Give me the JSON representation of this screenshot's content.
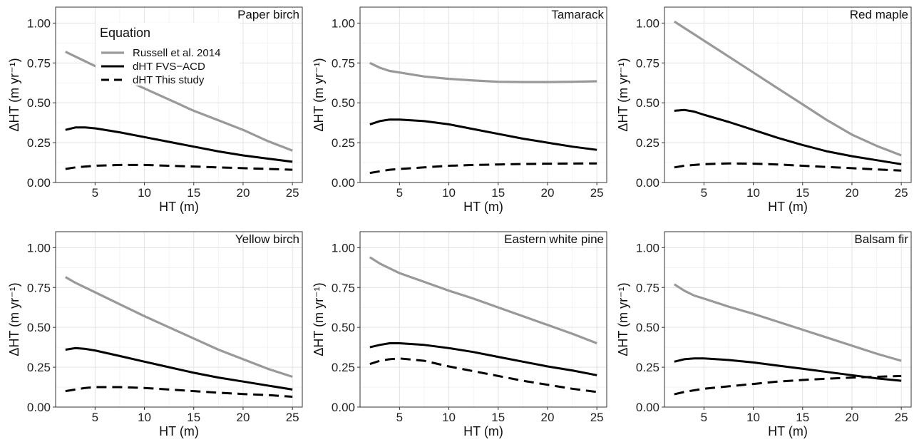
{
  "legend": {
    "title": "Equation",
    "position": "inside top-left of first panel"
  },
  "chart_data": [
    {
      "type": "line",
      "title": "Paper birch",
      "xlabel": "HT (m)",
      "ylabel": "ΔHT (m yr⁻¹)",
      "xlim": [
        1,
        26
      ],
      "ylim": [
        0,
        1.1
      ],
      "xticks": [
        5,
        10,
        15,
        20,
        25
      ],
      "yticks": [
        "0.00",
        "0.25",
        "0.50",
        "0.75",
        "1.00"
      ],
      "grid": true,
      "x": [
        2,
        3,
        4,
        5,
        7.5,
        10,
        12.5,
        15,
        17.5,
        20,
        22.5,
        25
      ],
      "series": [
        {
          "name": "Russell et al. 2014",
          "color": "#999999",
          "dash": "solid",
          "values": [
            0.82,
            0.79,
            0.76,
            0.73,
            0.66,
            0.59,
            0.52,
            0.45,
            0.39,
            0.33,
            0.26,
            0.2
          ]
        },
        {
          "name": "dHT FVS−ACD",
          "color": "#000000",
          "dash": "solid",
          "values": [
            0.33,
            0.345,
            0.345,
            0.34,
            0.315,
            0.285,
            0.255,
            0.225,
            0.195,
            0.17,
            0.15,
            0.13
          ]
        },
        {
          "name": "dHT This study",
          "color": "#000000",
          "dash": "dashed",
          "values": [
            0.085,
            0.095,
            0.1,
            0.105,
            0.11,
            0.11,
            0.105,
            0.1,
            0.095,
            0.09,
            0.085,
            0.08
          ]
        }
      ]
    },
    {
      "type": "line",
      "title": "Tamarack",
      "xlabel": "HT (m)",
      "ylabel": "ΔHT (m yr⁻¹)",
      "xlim": [
        1,
        26
      ],
      "ylim": [
        0,
        1.1
      ],
      "xticks": [
        5,
        10,
        15,
        20,
        25
      ],
      "yticks": [
        "0.00",
        "0.25",
        "0.50",
        "0.75",
        "1.00"
      ],
      "grid": true,
      "x": [
        2,
        3,
        4,
        5,
        7.5,
        10,
        12.5,
        15,
        17.5,
        20,
        22.5,
        25
      ],
      "series": [
        {
          "name": "Russell et al. 2014",
          "color": "#999999",
          "dash": "solid",
          "values": [
            0.75,
            0.72,
            0.7,
            0.69,
            0.665,
            0.65,
            0.64,
            0.632,
            0.63,
            0.63,
            0.632,
            0.635
          ]
        },
        {
          "name": "dHT FVS−ACD",
          "color": "#000000",
          "dash": "solid",
          "values": [
            0.365,
            0.385,
            0.395,
            0.395,
            0.385,
            0.365,
            0.335,
            0.305,
            0.275,
            0.25,
            0.225,
            0.205
          ]
        },
        {
          "name": "dHT This study",
          "color": "#000000",
          "dash": "dashed",
          "values": [
            0.06,
            0.07,
            0.08,
            0.085,
            0.095,
            0.105,
            0.11,
            0.113,
            0.116,
            0.118,
            0.119,
            0.12
          ]
        }
      ]
    },
    {
      "type": "line",
      "title": "Red maple",
      "xlabel": "HT (m)",
      "ylabel": "ΔHT (m yr⁻¹)",
      "xlim": [
        1,
        26
      ],
      "ylim": [
        0,
        1.1
      ],
      "xticks": [
        5,
        10,
        15,
        20,
        25
      ],
      "yticks": [
        "0.00",
        "0.25",
        "0.50",
        "0.75",
        "1.00"
      ],
      "grid": true,
      "x": [
        2,
        3,
        4,
        5,
        7.5,
        10,
        12.5,
        15,
        17.5,
        20,
        22.5,
        25
      ],
      "series": [
        {
          "name": "Russell et al. 2014",
          "color": "#999999",
          "dash": "solid",
          "values": [
            1.01,
            0.97,
            0.93,
            0.89,
            0.79,
            0.69,
            0.59,
            0.49,
            0.39,
            0.3,
            0.23,
            0.17
          ]
        },
        {
          "name": "dHT FVS−ACD",
          "color": "#000000",
          "dash": "solid",
          "values": [
            0.45,
            0.455,
            0.445,
            0.425,
            0.38,
            0.33,
            0.28,
            0.235,
            0.195,
            0.165,
            0.14,
            0.115
          ]
        },
        {
          "name": "dHT This study",
          "color": "#000000",
          "dash": "dashed",
          "values": [
            0.095,
            0.105,
            0.11,
            0.115,
            0.12,
            0.118,
            0.113,
            0.105,
            0.097,
            0.09,
            0.082,
            0.075
          ]
        }
      ]
    },
    {
      "type": "line",
      "title": "Yellow birch",
      "xlabel": "HT (m)",
      "ylabel": "ΔHT (m yr⁻¹)",
      "xlim": [
        1,
        26
      ],
      "ylim": [
        0,
        1.1
      ],
      "xticks": [
        5,
        10,
        15,
        20,
        25
      ],
      "yticks": [
        "0.00",
        "0.25",
        "0.50",
        "0.75",
        "1.00"
      ],
      "grid": true,
      "x": [
        2,
        3,
        4,
        5,
        7.5,
        10,
        12.5,
        15,
        17.5,
        20,
        22.5,
        25
      ],
      "series": [
        {
          "name": "Russell et al. 2014",
          "color": "#999999",
          "dash": "solid",
          "values": [
            0.815,
            0.78,
            0.75,
            0.72,
            0.645,
            0.57,
            0.5,
            0.43,
            0.36,
            0.3,
            0.24,
            0.19
          ]
        },
        {
          "name": "dHT FVS−ACD",
          "color": "#000000",
          "dash": "solid",
          "values": [
            0.36,
            0.37,
            0.365,
            0.355,
            0.32,
            0.285,
            0.25,
            0.215,
            0.185,
            0.16,
            0.135,
            0.11
          ]
        },
        {
          "name": "dHT This study",
          "color": "#000000",
          "dash": "dashed",
          "values": [
            0.1,
            0.11,
            0.12,
            0.125,
            0.125,
            0.12,
            0.11,
            0.1,
            0.09,
            0.082,
            0.075,
            0.065
          ]
        }
      ]
    },
    {
      "type": "line",
      "title": "Eastern white pine",
      "xlabel": "HT (m)",
      "ylabel": "ΔHT (m yr⁻¹)",
      "xlim": [
        1,
        26
      ],
      "ylim": [
        0,
        1.1
      ],
      "xticks": [
        5,
        10,
        15,
        20,
        25
      ],
      "yticks": [
        "0.00",
        "0.25",
        "0.50",
        "0.75",
        "1.00"
      ],
      "grid": true,
      "x": [
        2,
        3,
        4,
        5,
        7.5,
        10,
        12.5,
        15,
        17.5,
        20,
        22.5,
        25
      ],
      "series": [
        {
          "name": "Russell et al. 2014",
          "color": "#999999",
          "dash": "solid",
          "values": [
            0.94,
            0.9,
            0.87,
            0.84,
            0.785,
            0.73,
            0.68,
            0.625,
            0.57,
            0.515,
            0.46,
            0.4
          ]
        },
        {
          "name": "dHT FVS−ACD",
          "color": "#000000",
          "dash": "solid",
          "values": [
            0.375,
            0.39,
            0.4,
            0.4,
            0.39,
            0.37,
            0.345,
            0.315,
            0.285,
            0.255,
            0.23,
            0.2
          ]
        },
        {
          "name": "dHT This study",
          "color": "#000000",
          "dash": "dashed",
          "values": [
            0.27,
            0.29,
            0.3,
            0.305,
            0.29,
            0.255,
            0.225,
            0.195,
            0.165,
            0.14,
            0.115,
            0.095
          ]
        }
      ]
    },
    {
      "type": "line",
      "title": "Balsam fir",
      "xlabel": "HT (m)",
      "ylabel": "ΔHT (m yr⁻¹)",
      "xlim": [
        1,
        26
      ],
      "ylim": [
        0,
        1.1
      ],
      "xticks": [
        5,
        10,
        15,
        20,
        25
      ],
      "yticks": [
        "0.00",
        "0.25",
        "0.50",
        "0.75",
        "1.00"
      ],
      "grid": true,
      "x": [
        2,
        3,
        4,
        5,
        7.5,
        10,
        12.5,
        15,
        17.5,
        20,
        22.5,
        25
      ],
      "series": [
        {
          "name": "Russell et al. 2014",
          "color": "#999999",
          "dash": "solid",
          "values": [
            0.77,
            0.73,
            0.7,
            0.68,
            0.63,
            0.585,
            0.535,
            0.485,
            0.435,
            0.385,
            0.335,
            0.29
          ]
        },
        {
          "name": "dHT FVS−ACD",
          "color": "#000000",
          "dash": "solid",
          "values": [
            0.285,
            0.3,
            0.305,
            0.305,
            0.295,
            0.28,
            0.26,
            0.24,
            0.22,
            0.2,
            0.18,
            0.165
          ]
        },
        {
          "name": "dHT This study",
          "color": "#000000",
          "dash": "dashed",
          "values": [
            0.08,
            0.095,
            0.105,
            0.115,
            0.13,
            0.145,
            0.16,
            0.17,
            0.178,
            0.185,
            0.19,
            0.195
          ]
        }
      ]
    }
  ]
}
